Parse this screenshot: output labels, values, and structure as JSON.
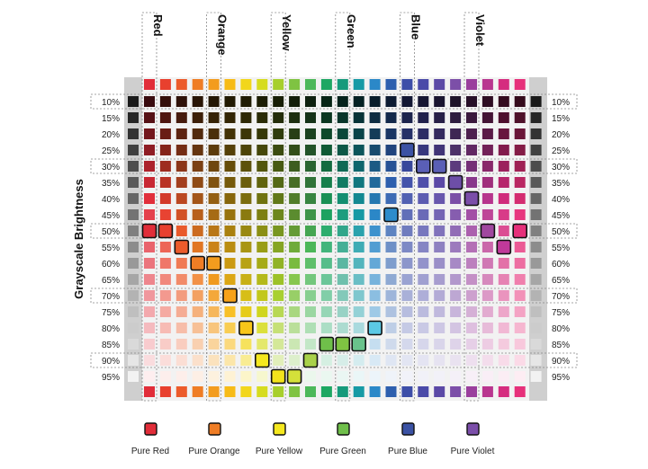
{
  "y_title": "Grayscale Brightness",
  "hue_labels": [
    "Red",
    "Orange",
    "Yellow",
    "Green",
    "Blue",
    "Violet"
  ],
  "hue_label_columns": [
    0,
    4,
    8,
    12,
    16,
    20
  ],
  "brightness_levels": [
    "10%",
    "15%",
    "20%",
    "25%",
    "30%",
    "35%",
    "40%",
    "45%",
    "50%",
    "55%",
    "60%",
    "65%",
    "70%",
    "75%",
    "80%",
    "85%",
    "90%",
    "95%"
  ],
  "dashed_rows": [
    "10%",
    "30%",
    "50%",
    "70%",
    "90%"
  ],
  "hue_swatches": [
    "#e12d39",
    "#e8402e",
    "#ec5b2b",
    "#ef7d25",
    "#f39c1e",
    "#f7bb16",
    "#f2d61b",
    "#d6dc1f",
    "#a7cf2c",
    "#7fc342",
    "#4db85a",
    "#1ea763",
    "#169a7b",
    "#169aa5",
    "#2b88c8",
    "#2d5fae",
    "#3d4ea8",
    "#4a4aa8",
    "#5b49a6",
    "#7c4fa8",
    "#9a3f9d",
    "#b9368f",
    "#d52d7f",
    "#e6307a"
  ],
  "pure_color_column": {
    "Red": 0,
    "Orange": 4,
    "Yellow": 8,
    "Green": 12,
    "Blue": 16,
    "Violet": 20
  },
  "highlight_cells": [
    {
      "row": "25%",
      "col": 16,
      "color": "#3b52a4"
    },
    {
      "row": "30%",
      "col": 17,
      "color": "#5a5fb6"
    },
    {
      "row": "30%",
      "col": 18,
      "color": "#5a5fb6"
    },
    {
      "row": "35%",
      "col": 19,
      "color": "#6d4ea8"
    },
    {
      "row": "40%",
      "col": 20,
      "color": "#7b4ea9"
    },
    {
      "row": "45%",
      "col": 15,
      "color": "#2d8ccb"
    },
    {
      "row": "50%",
      "col": 0,
      "color": "#e12d39"
    },
    {
      "row": "50%",
      "col": 1,
      "color": "#e8402e"
    },
    {
      "row": "50%",
      "col": 21,
      "color": "#a0479f"
    },
    {
      "row": "50%",
      "col": 23,
      "color": "#e6307a"
    },
    {
      "row": "55%",
      "col": 2,
      "color": "#ec5b2b"
    },
    {
      "row": "55%",
      "col": 22,
      "color": "#c0399a"
    },
    {
      "row": "60%",
      "col": 3,
      "color": "#ef7d25"
    },
    {
      "row": "60%",
      "col": 4,
      "color": "#f39c1e"
    },
    {
      "row": "70%",
      "col": 5,
      "color": "#f7a21a"
    },
    {
      "row": "80%",
      "col": 6,
      "color": "#f8c619"
    },
    {
      "row": "80%",
      "col": 14,
      "color": "#5bc9e6"
    },
    {
      "row": "85%",
      "col": 11,
      "color": "#6fbf4a"
    },
    {
      "row": "85%",
      "col": 12,
      "color": "#7fc342"
    },
    {
      "row": "85%",
      "col": 13,
      "color": "#69c28b"
    },
    {
      "row": "90%",
      "col": 7,
      "color": "#f5e81f"
    },
    {
      "row": "90%",
      "col": 10,
      "color": "#a9d14a"
    },
    {
      "row": "95%",
      "col": 8,
      "color": "#f2e21c"
    },
    {
      "row": "95%",
      "col": 9,
      "color": "#d4e03a"
    }
  ],
  "legend": [
    {
      "label": "Pure Red",
      "color": "#e12d39"
    },
    {
      "label": "Pure Orange",
      "color": "#ef7d25"
    },
    {
      "label": "Pure Yellow",
      "color": "#f5e81f"
    },
    {
      "label": "Pure Green",
      "color": "#6fbf4a"
    },
    {
      "label": "Pure Blue",
      "color": "#3b52a4"
    },
    {
      "label": "Pure Violet",
      "color": "#7b4ea9"
    }
  ]
}
